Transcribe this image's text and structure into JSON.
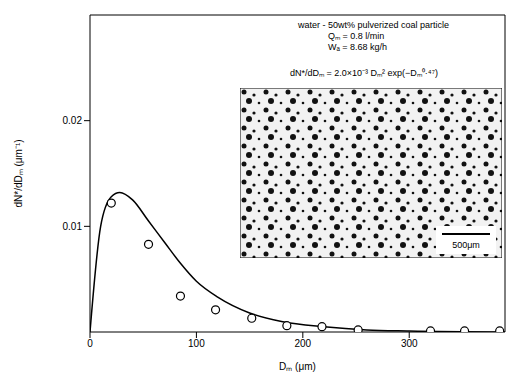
{
  "chart_data": {
    "type": "scatter",
    "annotations": [
      "water - 50wt% pulverized coal particle",
      "Qₘ = 0.8 l/min",
      "Wₐ = 8.68 kg/h",
      "dN*/dDₘ = 2.0×10⁻³ Dₘ² exp(−Dₘ⁰·⁴⁷)"
    ],
    "inset_label": "500μm",
    "x_label": "Dₘ (μm)",
    "y_label": "dN*/dDₘ (μm⁻¹)",
    "xlim": [
      0,
      390
    ],
    "xticks": [
      0,
      100,
      200,
      300
    ],
    "ylim": [
      0,
      0.03
    ],
    "yticks": [
      0.01,
      0.02
    ],
    "series": [
      {
        "type": "scatter",
        "marker": "circle",
        "color": "#000000",
        "x": [
          20,
          55,
          85,
          118,
          152,
          185,
          218,
          252,
          320,
          352,
          385
        ],
        "values": [
          0.0122,
          0.0083,
          0.0034,
          0.0021,
          0.0013,
          0.0006,
          0.0005,
          0.0002,
          0.0001,
          0.0001,
          0.0001
        ]
      },
      {
        "type": "line",
        "line_style": "solid",
        "color": "#000000",
        "x": [
          0,
          10,
          20,
          28,
          40,
          55,
          70,
          85,
          100,
          120,
          150,
          180,
          220,
          260,
          300,
          390
        ],
        "values": [
          0,
          0.01,
          0.0128,
          0.0132,
          0.0125,
          0.0105,
          0.0085,
          0.0065,
          0.0048,
          0.0033,
          0.0018,
          0.001,
          0.0005,
          0.0002,
          0.0001,
          0
        ]
      }
    ]
  }
}
